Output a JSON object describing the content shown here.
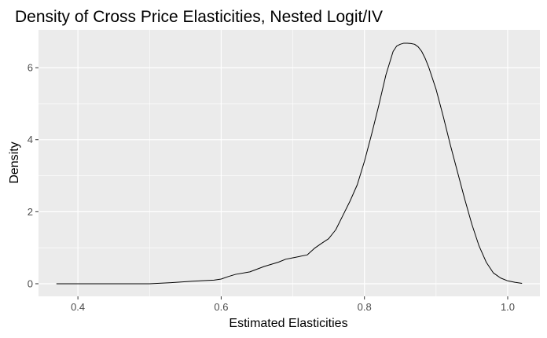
{
  "chart_data": {
    "type": "line",
    "title": "Density of Cross Price Elasticities, Nested Logit/IV",
    "xlabel": "Estimated Elasticities",
    "ylabel": "Density",
    "xlim": [
      0.345,
      1.045
    ],
    "ylim": [
      -0.35,
      7.05
    ],
    "x_ticks": [
      0.4,
      0.6,
      0.8,
      1.0
    ],
    "x_tick_labels": [
      "0.4",
      "0.6",
      "0.8",
      "1.0"
    ],
    "y_ticks": [
      0,
      2,
      4,
      6
    ],
    "y_tick_labels": [
      "0",
      "2",
      "4",
      "6"
    ],
    "grid": true,
    "legend": "none",
    "colors": {
      "panel": "#ebebeb",
      "grid_major": "#ffffff",
      "line": "#000000",
      "tick_label": "#4d4d4d"
    },
    "series": [
      {
        "x": [
          0.37,
          0.4,
          0.45,
          0.5,
          0.53,
          0.56,
          0.59,
          0.6,
          0.61,
          0.62,
          0.64,
          0.66,
          0.68,
          0.69,
          0.7,
          0.72,
          0.73,
          0.74,
          0.75,
          0.76,
          0.77,
          0.78,
          0.79,
          0.8,
          0.81,
          0.82,
          0.83,
          0.84,
          0.845,
          0.85,
          0.855,
          0.86,
          0.865,
          0.87,
          0.875,
          0.88,
          0.885,
          0.89,
          0.9,
          0.91,
          0.92,
          0.93,
          0.94,
          0.95,
          0.96,
          0.97,
          0.98,
          0.99,
          1.0,
          1.01,
          1.02
        ],
        "y": [
          0.0,
          0.0,
          0.0,
          0.0,
          0.03,
          0.07,
          0.1,
          0.13,
          0.2,
          0.26,
          0.33,
          0.48,
          0.6,
          0.68,
          0.72,
          0.8,
          0.98,
          1.12,
          1.25,
          1.5,
          1.9,
          2.3,
          2.75,
          3.4,
          4.15,
          4.95,
          5.8,
          6.45,
          6.6,
          6.65,
          6.68,
          6.68,
          6.67,
          6.65,
          6.58,
          6.45,
          6.25,
          6.0,
          5.4,
          4.65,
          3.85,
          3.1,
          2.35,
          1.65,
          1.05,
          0.6,
          0.3,
          0.16,
          0.08,
          0.04,
          0.01
        ]
      }
    ]
  }
}
